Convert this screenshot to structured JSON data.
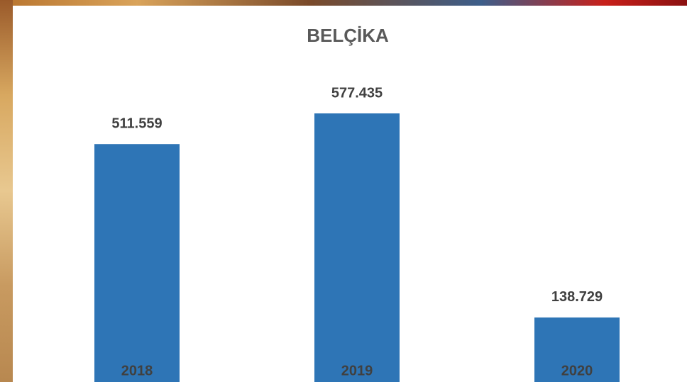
{
  "chart_data": {
    "type": "bar",
    "title": "BELÇİKA",
    "categories": [
      "2018",
      "2019",
      "2020"
    ],
    "values": [
      511559,
      577435,
      138729
    ],
    "value_labels": [
      "511.559",
      "577.435",
      "138.729"
    ],
    "color": "#2e75b6"
  }
}
